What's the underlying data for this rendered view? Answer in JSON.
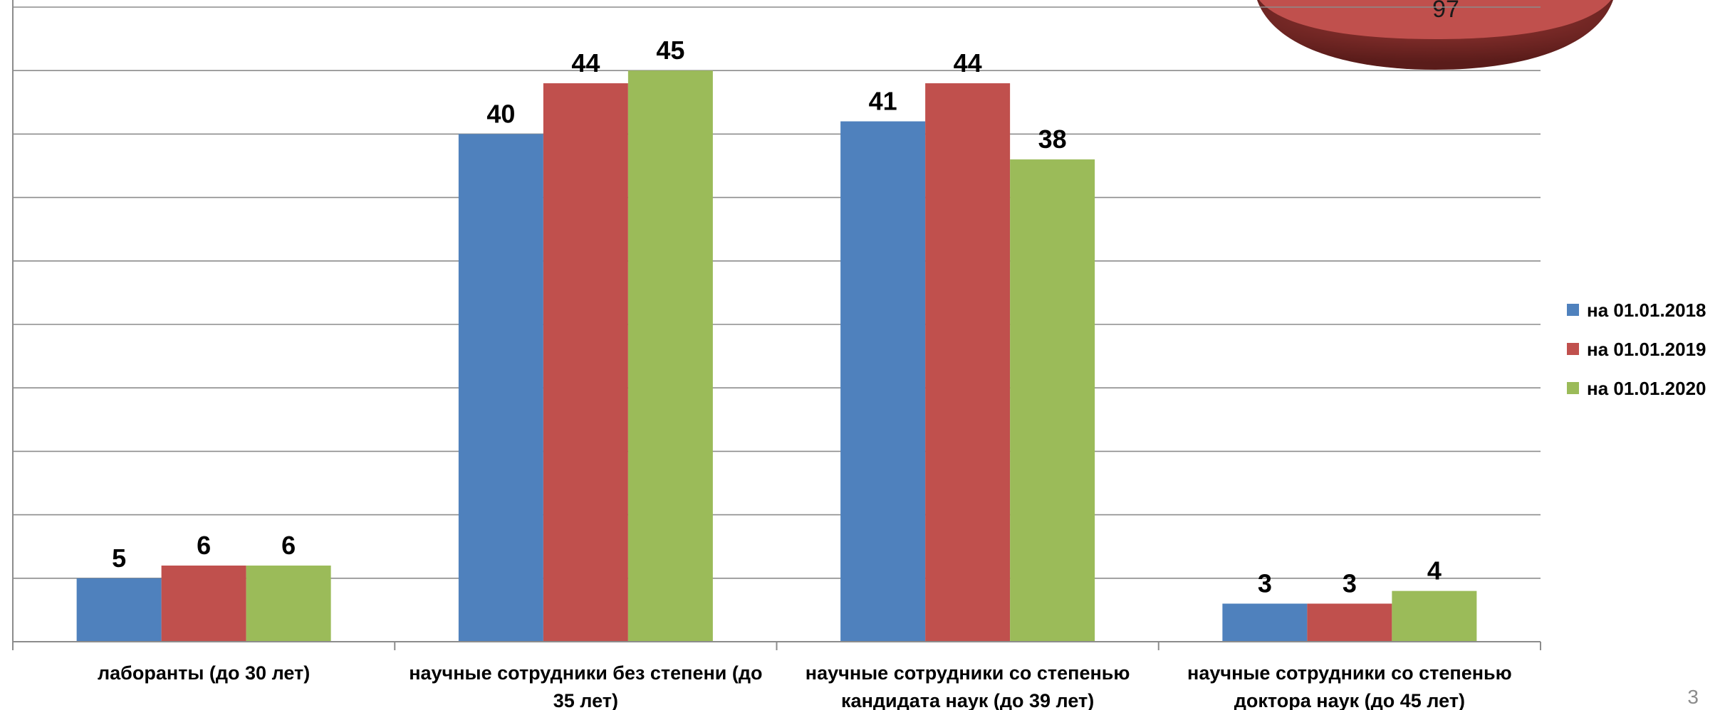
{
  "chart_data": [
    {
      "type": "bar",
      "categories": [
        "лаборанты (до 30 лет)",
        "научные сотрудники без степени (до 35 лет)",
        "научные сотрудники со степенью кандидата наук (до 39 лет)",
        "научные сотрудники со степенью доктора наук (до 45 лет)"
      ],
      "category_lines": [
        [
          "лаборанты (до 30 лет)"
        ],
        [
          "научные сотрудники без степени (до",
          "35 лет)"
        ],
        [
          "научные сотрудники со степенью",
          "кандидата наук (до 39 лет)"
        ],
        [
          "научные сотрудники со степенью",
          "доктора наук (до 45 лет)"
        ]
      ],
      "series": [
        {
          "name": "на 01.01.2018",
          "color": "#4f81bd",
          "values": [
            5,
            40,
            41,
            3
          ]
        },
        {
          "name": "на 01.01.2019",
          "color": "#c0504d",
          "values": [
            6,
            44,
            44,
            3
          ]
        },
        {
          "name": "на 01.01.2020",
          "color": "#9bbb59",
          "values": [
            6,
            45,
            38,
            4
          ]
        }
      ],
      "ylim": [
        0,
        50
      ],
      "grid": true,
      "legend": "right",
      "data_labels": true,
      "title": "",
      "xlabel": "",
      "ylabel": ""
    },
    {
      "type": "pie",
      "partially_visible": true,
      "visible_label": "97",
      "color": "#c0504d"
    }
  ],
  "page_number": "3"
}
